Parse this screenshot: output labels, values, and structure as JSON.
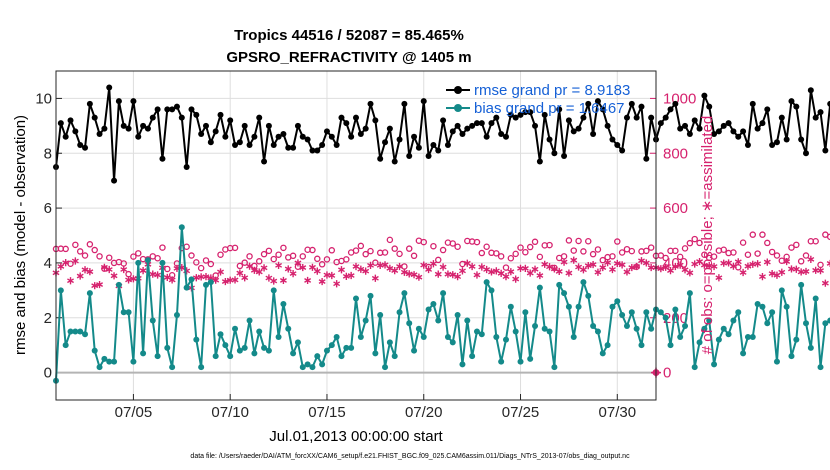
{
  "colors": {
    "rmse": "#000000",
    "bias": "#148a8a",
    "obs": "#d6226e",
    "legend_text": "#1560d6",
    "grid": "#dedede",
    "zero_line": "#b4b4b4"
  },
  "chart_data": {
    "type": "line",
    "title": "Tropics 44516 / 52087 = 85.465%",
    "subtitle": "GPSRO_REFRACTIVITY @ 1405 m",
    "xlabel": "Jul.01,2013 00:00:00 start",
    "ylabel": "rmse and bias (model - observation)",
    "y2label": "# of obs: o=possible; ∗=assimilated",
    "footer": "data file: /Users/raeder/DAI/ATM_forcXX/CAM6_setup/f.e21.FHIST_BGC.f09_025.CAM6assim.011/Diags_NTrS_2013-07/obs_diag_output.nc",
    "xlim": [
      1.0,
      32.0
    ],
    "ylim": [
      -1.0,
      11.0
    ],
    "y2lim": [
      -100,
      1100
    ],
    "x_ticks": [
      5,
      10,
      15,
      20,
      25,
      30
    ],
    "x_ticklabels": [
      "07/05",
      "07/10",
      "07/15",
      "07/20",
      "07/25",
      "07/30"
    ],
    "y_ticks": [
      0,
      2,
      4,
      6,
      8,
      10
    ],
    "y_ticklabels": [
      "0",
      "2",
      "4",
      "6",
      "8",
      "10"
    ],
    "y2_ticks": [
      0,
      200,
      400,
      600,
      800,
      1000
    ],
    "y2_ticklabels": [
      "0",
      "200",
      "400",
      "600",
      "800",
      "1000"
    ],
    "legend": [
      {
        "name": "rmse",
        "label": "rmse grand pr = 8.9183"
      },
      {
        "name": "bias",
        "label": "bias grand pr = 1.6467"
      }
    ],
    "x_start": 1.0,
    "x_step": 0.25,
    "series": [
      {
        "name": "rmse",
        "axis": "left",
        "values": [
          7.5,
          9.1,
          8.6,
          9.2,
          8.8,
          8.3,
          8.2,
          9.8,
          9.3,
          8.7,
          8.9,
          10.4,
          7.0,
          9.9,
          9.0,
          8.9,
          9.9,
          8.6,
          9.0,
          8.9,
          9.3,
          9.6,
          7.8,
          9.6,
          9.6,
          9.7,
          9.3,
          7.5,
          9.6,
          9.4,
          8.7,
          9.0,
          8.4,
          8.8,
          9.4,
          8.6,
          9.2,
          8.3,
          8.4,
          9.0,
          8.3,
          8.6,
          9.3,
          7.7,
          9.0,
          8.3,
          8.6,
          8.7,
          8.2,
          8.2,
          9.0,
          8.6,
          8.5,
          8.1,
          8.1,
          8.3,
          8.8,
          8.6,
          8.3,
          9.3,
          9.1,
          8.6,
          9.3,
          8.7,
          8.9,
          9.8,
          9.2,
          7.8,
          8.4,
          8.9,
          7.7,
          8.5,
          9.8,
          7.9,
          8.6,
          8.2,
          9.9,
          7.9,
          8.3,
          8.1,
          9.2,
          8.3,
          8.8,
          9.0,
          8.7,
          8.9,
          9.0,
          9.1,
          9.1,
          8.6,
          9.1,
          9.3,
          8.7,
          8.6,
          9.4,
          9.3,
          9.4,
          9.5,
          9.5,
          9.0,
          7.7,
          9.4,
          8.5,
          8.0,
          9.6,
          7.9,
          9.2,
          8.8,
          8.9,
          9.3,
          9.8,
          8.7,
          9.9,
          9.6,
          9.0,
          8.5,
          8.3,
          8.1,
          9.3,
          9.8,
          9.3,
          9.7,
          7.8,
          9.3,
          8.5,
          9.1,
          9.3,
          9.6,
          9.8,
          8.9,
          9.0,
          8.7,
          9.2,
          8.9,
          10.1,
          9.7,
          8.7,
          8.8,
          9.0,
          9.1,
          8.8,
          8.6,
          8.8,
          8.3,
          9.8,
          8.9,
          9.1,
          9.6,
          8.3,
          8.4,
          9.3,
          8.5,
          9.9,
          9.7,
          8.5,
          8.0,
          10.3,
          9.3,
          9.5,
          8.1,
          9.8,
          8.9,
          8.5,
          8.5,
          8.8,
          8.4,
          9.8,
          9.5,
          10.0,
          8.6,
          9.7,
          9.0,
          8.7,
          9.1,
          9.6,
          8.6,
          9.5,
          8.5,
          8.5,
          9.8,
          9.4,
          9.3,
          9.3,
          9.6,
          9.9,
          9.2,
          8.9,
          10.1,
          9.0,
          8.6,
          8.7,
          9.9,
          9.4,
          9.3,
          8.8,
          9.7,
          9.6,
          9.4,
          8.5,
          8.9,
          8.9,
          9.9,
          8.8,
          9.5,
          9.7,
          10.0,
          8.2,
          9.0,
          9.0,
          8.6,
          9.9,
          9.6,
          9.6,
          8.9,
          8.6,
          9.6,
          9.4,
          9.2,
          9.4,
          8.7,
          9.9,
          8.5,
          8.3,
          9.5,
          8.6,
          8.9,
          9.8,
          8.3,
          8.6,
          9.0,
          8.5,
          9.6,
          9.5,
          9.3,
          9.1,
          8.8,
          8.8,
          9.2,
          9.3,
          9.8,
          9.6,
          8.9,
          9.4,
          8.8,
          8.1,
          9.5,
          8.8,
          9.4,
          9.2,
          9.5,
          8.5,
          8.5,
          9.7,
          9.3,
          9.0,
          9.3
        ]
      },
      {
        "name": "bias",
        "axis": "left",
        "values": [
          -0.3,
          3.0,
          1.0,
          1.5,
          1.5,
          1.5,
          1.4,
          2.9,
          0.8,
          0.2,
          0.5,
          0.4,
          0.4,
          3.2,
          2.2,
          2.2,
          0.4,
          4.0,
          0.7,
          4.1,
          1.9,
          0.6,
          4.0,
          0.9,
          0.2,
          2.1,
          5.3,
          3.1,
          3.4,
          1.2,
          0.2,
          3.2,
          3.3,
          0.6,
          1.4,
          1.0,
          0.6,
          1.6,
          0.8,
          0.9,
          1.9,
          0.7,
          1.5,
          0.9,
          0.8,
          3.0,
          1.3,
          2.5,
          1.6,
          0.7,
          1.1,
          0.2,
          0.3,
          0.2,
          0.6,
          0.3,
          0.8,
          1.0,
          1.3,
          0.6,
          0.9,
          0.9,
          2.7,
          1.3,
          1.9,
          2.8,
          0.7,
          2.1,
          0.2,
          1.1,
          0.6,
          2.2,
          2.9,
          1.8,
          0.8,
          1.6,
          1.3,
          2.3,
          2.5,
          1.9,
          2.9,
          1.3,
          1.1,
          2.1,
          0.3,
          1.9,
          0.6,
          1.5,
          1.4,
          3.3,
          3.0,
          1.3,
          0.4,
          1.2,
          2.4,
          1.5,
          0.4,
          2.2,
          0.5,
          1.7,
          3.1,
          1.6,
          1.5,
          0.2,
          3.2,
          2.9,
          2.4,
          1.3,
          2.4,
          3.3,
          2.8,
          1.7,
          1.5,
          0.7,
          1.0,
          2.4,
          2.6,
          2.1,
          1.7,
          2.2,
          1.6,
          1.0,
          2.2,
          1.6,
          2.3,
          2.2,
          2.0,
          1.0,
          2.3,
          1.3,
          1.7,
          2.9,
          0.2,
          1.1,
          1.6,
          1.9,
          0.3,
          1.2,
          1.6,
          1.4,
          1.9,
          2.2,
          0.7,
          1.3,
          1.3,
          2.5,
          2.4,
          1.8,
          2.2,
          0.4,
          3.0,
          2.4,
          0.6,
          1.2,
          3.2,
          1.8,
          0.9,
          2.7,
          0.2,
          1.8,
          1.9,
          1.1,
          2.4,
          1.4,
          0.7,
          1.4,
          0.9,
          1.0,
          1.6,
          0.5,
          1.7,
          1.9,
          1.1,
          1.6,
          1.3,
          1.9,
          1.6,
          1.1,
          2.0,
          1.0,
          1.8,
          2.4,
          1.3,
          1.2,
          2.5,
          2.1,
          2.0,
          1.4,
          1.6,
          0.9,
          0.8,
          0.6,
          2.7,
          1.8,
          1.9,
          0.5,
          3.1,
          1.2,
          2.2,
          1.9,
          0.4,
          1.8,
          1.1,
          0.6,
          3.2,
          1.3,
          1.4,
          2.0,
          1.0,
          1.2,
          1.4,
          2.0,
          3.5,
          1.1,
          2.6,
          2.9,
          1.0,
          3.3,
          0.3,
          3.0,
          2.0,
          1.7,
          1.4,
          1.5,
          0.7,
          2.4,
          1.3,
          1.8,
          1.1,
          0.5,
          3.4,
          2.2,
          3.1,
          0.2,
          2.2,
          1.8,
          2.9,
          1.0,
          1.6,
          0.4,
          1.9,
          1.6,
          2.4,
          1.6,
          1.7,
          2.2,
          3.2,
          2.8,
          2.3,
          2.5,
          1.8,
          1.2,
          1.6,
          3.0
        ]
      },
      {
        "name": "obs_possible",
        "axis": "right",
        "values": [
          451,
          452,
          451,
          397,
          466,
          442,
          427,
          468,
          447,
          424,
          379,
          419,
          400,
          403,
          398,
          359,
          423,
          435,
          414,
          413,
          424,
          417,
          456,
          378,
          355,
          398,
          454,
          459,
          427,
          402,
          381,
          409,
          396,
          354,
          430,
          449,
          454,
          455,
          389,
          401,
          424,
          389,
          406,
          432,
          444,
          414,
          430,
          455,
          420,
          426,
          386,
          424,
          448,
          447,
          415,
          395,
          413,
          446,
          403,
          407,
          413,
          438,
          445,
          462,
          432,
          443,
          401,
          437,
          438,
          484,
          452,
          433,
          387,
          452,
          426,
          481,
          476,
          385,
          461,
          411,
          447,
          474,
          471,
          459,
          396,
          480,
          478,
          476,
          436,
          459,
          437,
          435,
          424,
          383,
          417,
          433,
          456,
          439,
          458,
          477,
          422,
          464,
          465,
          382,
          418,
          424,
          482,
          445,
          480,
          442,
          479,
          432,
          449,
          410,
          421,
          424,
          478,
          438,
          450,
          443,
          386,
          442,
          444,
          456,
          426,
          427,
          418,
          444,
          444,
          422,
          453,
          472,
          487,
          473,
          430,
          418,
          423,
          445,
          448,
          436,
          438,
          384,
          474,
          430,
          503,
          434,
          503,
          473,
          440,
          427,
          408,
          422,
          456,
          466,
          406,
          427,
          479,
          479,
          393,
          503,
          495,
          475,
          452,
          503,
          441,
          504,
          437,
          426,
          423,
          444,
          478,
          490,
          486,
          417,
          473,
          500,
          476,
          448,
          462,
          456,
          492,
          478,
          422,
          482,
          467,
          497,
          457,
          449,
          411,
          446,
          441,
          474,
          493,
          449,
          473,
          464,
          451,
          434,
          434,
          484,
          454,
          417,
          391,
          394,
          446,
          459,
          461,
          435,
          477,
          430,
          435,
          491,
          394,
          488,
          478,
          425,
          400,
          468,
          461,
          445,
          440,
          465,
          430,
          412,
          410,
          426,
          469,
          426,
          472,
          426,
          437,
          440,
          442,
          416,
          460,
          467,
          409,
          484,
          440,
          434,
          472,
          471,
          437,
          398,
          415,
          416,
          470,
          412,
          441,
          426,
          452,
          463,
          464,
          403,
          426,
          412,
          420,
          450,
          402
        ]
      },
      {
        "name": "obs_assimilated",
        "axis": "right",
        "values": [
          364,
          387,
          401,
          335,
          407,
          352,
          375,
          368,
          317,
          321,
          384,
          376,
          353,
          316,
          376,
          338,
          342,
          344,
          372,
          395,
          359,
          356,
          382,
          347,
          338,
          380,
          383,
          371,
          309,
          346,
          349,
          350,
          345,
          337,
          367,
          332,
          337,
          338,
          363,
          346,
          388,
          373,
          367,
          382,
          345,
          334,
          391,
          336,
          378,
          361,
          400,
          383,
          336,
          384,
          370,
          332,
          356,
          354,
          324,
          375,
          351,
          354,
          387,
          377,
          370,
          391,
          344,
          391,
          393,
          380,
          372,
          387,
          366,
          360,
          357,
          348,
          392,
          376,
          397,
          359,
          385,
          359,
          357,
          350,
          371,
          399,
          387,
          356,
          385,
          376,
          367,
          371,
          362,
          350,
          368,
          341,
          380,
          380,
          363,
          377,
          354,
          395,
          386,
          378,
          369,
          403,
          363,
          410,
          385,
          375,
          390,
          394,
          366,
          383,
          401,
          376,
          398,
          393,
          367,
          383,
          387,
          408,
          400,
          383,
          383,
          379,
          384,
          372,
          387,
          392,
          375,
          364,
          396,
          405,
          392,
          390,
          387,
          346,
          399,
          400,
          388,
          404,
          365,
          388,
          395,
          397,
          350,
          403,
          361,
          355,
          366,
          405,
          378,
          377,
          367,
          369,
          413,
          373,
          372,
          326,
          398,
          383,
          294,
          365,
          360,
          339,
          325,
          406,
          395,
          339,
          381,
          433,
          419,
          435,
          439,
          431,
          401,
          423,
          405,
          402,
          404,
          376,
          403,
          438,
          430,
          413,
          448,
          400,
          405,
          406,
          407,
          416,
          407,
          422,
          426,
          435,
          402,
          412,
          415,
          418,
          412,
          415,
          413,
          414,
          426,
          417,
          408,
          411,
          407,
          413,
          411,
          403,
          404,
          411,
          416,
          413,
          417,
          406,
          415,
          414,
          408,
          411,
          395,
          400,
          424,
          400,
          384,
          393,
          404,
          440,
          409,
          360,
          382,
          376,
          371,
          395,
          391,
          382,
          378,
          375,
          395,
          396,
          423,
          410,
          408,
          430,
          412,
          406,
          405,
          421,
          408,
          410,
          410,
          404,
          398,
          401,
          406,
          407,
          405
        ]
      }
    ]
  }
}
